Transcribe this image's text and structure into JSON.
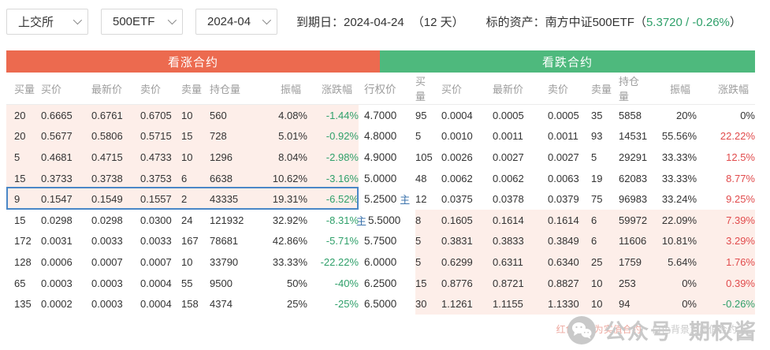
{
  "toolbar": {
    "dropdowns": [
      {
        "value": "上交所"
      },
      {
        "value": "500ETF"
      },
      {
        "value": "2024-04"
      }
    ],
    "expiry_label": "到期日：2024-04-24",
    "days_label": "（12 天）",
    "underlying_label": "标的资产：南方中证500ETF",
    "quote_open": "（",
    "quote_value": "5.3720 / -0.26%",
    "quote_close": "）"
  },
  "banners": {
    "call": "看涨合约",
    "put": "看跌合约"
  },
  "headers": {
    "call": [
      "买量",
      "买价",
      "最新价",
      "卖价",
      "卖量",
      "持仓量",
      "振幅",
      "涨跌幅"
    ],
    "strike": "行权价",
    "put": [
      "买量",
      "买价",
      "最新价",
      "卖价",
      "卖量",
      "持仓量",
      "振幅",
      "涨跌幅"
    ]
  },
  "main_marker": "主",
  "rows": [
    {
      "call": [
        "20",
        "0.6665",
        "0.6761",
        "0.6705",
        "10",
        "560",
        "4.08%",
        "-1.44%"
      ],
      "strike": "4.7000",
      "put": [
        "95",
        "0.0004",
        "0.0005",
        "0.0005",
        "35",
        "5858",
        "20%",
        "0%"
      ],
      "call_itm": true,
      "put_itm": false,
      "selected": false,
      "call_main": false,
      "put_main": false
    },
    {
      "call": [
        "20",
        "0.5677",
        "0.5806",
        "0.5715",
        "15",
        "728",
        "5.01%",
        "-0.92%"
      ],
      "strike": "4.8000",
      "put": [
        "5",
        "0.0010",
        "0.0011",
        "0.0011",
        "93",
        "14531",
        "55.56%",
        "22.22%"
      ],
      "call_itm": true,
      "put_itm": false,
      "selected": false,
      "call_main": false,
      "put_main": false
    },
    {
      "call": [
        "5",
        "0.4681",
        "0.4715",
        "0.4733",
        "10",
        "1296",
        "8.04%",
        "-2.98%"
      ],
      "strike": "4.9000",
      "put": [
        "105",
        "0.0026",
        "0.0027",
        "0.0027",
        "5",
        "29291",
        "33.33%",
        "12.5%"
      ],
      "call_itm": true,
      "put_itm": false,
      "selected": false,
      "call_main": false,
      "put_main": false
    },
    {
      "call": [
        "15",
        "0.3733",
        "0.3738",
        "0.3753",
        "6",
        "6638",
        "10.62%",
        "-3.16%"
      ],
      "strike": "5.0000",
      "put": [
        "48",
        "0.0062",
        "0.0062",
        "0.0063",
        "19",
        "62083",
        "33.33%",
        "8.77%"
      ],
      "call_itm": true,
      "put_itm": false,
      "selected": false,
      "call_main": false,
      "put_main": false
    },
    {
      "call": [
        "9",
        "0.1547",
        "0.1549",
        "0.1557",
        "2",
        "43335",
        "19.31%",
        "-6.52%"
      ],
      "strike": "5.2500",
      "put": [
        "12",
        "0.0375",
        "0.0378",
        "0.0379",
        "75",
        "96983",
        "33.24%",
        "9.25%"
      ],
      "call_itm": true,
      "put_itm": false,
      "selected": true,
      "call_main": false,
      "put_main": true
    },
    {
      "call": [
        "15",
        "0.0298",
        "0.0298",
        "0.0300",
        "24",
        "121932",
        "32.92%",
        "-8.31%"
      ],
      "strike": "5.5000",
      "put": [
        "8",
        "0.1605",
        "0.1614",
        "0.1614",
        "6",
        "59972",
        "22.09%",
        "7.39%"
      ],
      "call_itm": false,
      "put_itm": true,
      "selected": false,
      "call_main": true,
      "put_main": false
    },
    {
      "call": [
        "172",
        "0.0031",
        "0.0033",
        "0.0033",
        "167",
        "78681",
        "42.86%",
        "-5.71%"
      ],
      "strike": "5.7500",
      "put": [
        "5",
        "0.3831",
        "0.3833",
        "0.3849",
        "6",
        "11606",
        "10.81%",
        "3.29%"
      ],
      "call_itm": false,
      "put_itm": true,
      "selected": false,
      "call_main": false,
      "put_main": false
    },
    {
      "call": [
        "128",
        "0.0006",
        "0.0007",
        "0.0007",
        "10",
        "33790",
        "33.33%",
        "-22.22%"
      ],
      "strike": "6.0000",
      "put": [
        "5",
        "0.6299",
        "0.6311",
        "0.6340",
        "25",
        "1759",
        "5.64%",
        "1.76%"
      ],
      "call_itm": false,
      "put_itm": true,
      "selected": false,
      "call_main": false,
      "put_main": false
    },
    {
      "call": [
        "65",
        "0.0003",
        "0.0003",
        "0.0004",
        "55",
        "9500",
        "50%",
        "-40%"
      ],
      "strike": "6.2500",
      "put": [
        "15",
        "0.8776",
        "0.8721",
        "0.8827",
        "10",
        "253",
        "0%",
        "0.39%"
      ],
      "call_itm": false,
      "put_itm": true,
      "selected": false,
      "call_main": false,
      "put_main": false
    },
    {
      "call": [
        "135",
        "0.0002",
        "0.0003",
        "0.0004",
        "158",
        "4374",
        "25%",
        "-25%"
      ],
      "strike": "6.5000",
      "put": [
        "30",
        "1.1261",
        "1.1155",
        "1.1330",
        "10",
        "94",
        "0%",
        "-0.26%"
      ],
      "call_itm": false,
      "put_itm": true,
      "selected": false,
      "call_main": false,
      "put_main": false
    }
  ],
  "footer": {
    "note_itm": "红色背景为实值合约",
    "note_otm": "白色背景为虚值合约",
    "watermark_label": "公众号",
    "watermark_name": "期权酱"
  },
  "colors": {
    "up": "#e14b4c",
    "down": "#2fa06a",
    "call_banner": "#ec6a4f",
    "put_banner": "#4eb97d",
    "itm_bg": "#fdeee9",
    "selection": "#4a87c7",
    "main_marker": "#3d74ad",
    "underlying_quote": "#2fa06a"
  }
}
